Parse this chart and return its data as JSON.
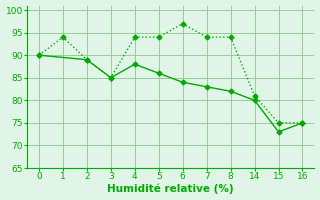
{
  "line1_x_idx": [
    0,
    1,
    2,
    3,
    4,
    5,
    6,
    7,
    8,
    9,
    10,
    11
  ],
  "line1_y": [
    90,
    94,
    89,
    85,
    94,
    94,
    97,
    94,
    94,
    81,
    75,
    75
  ],
  "line2_x_idx": [
    0,
    2,
    3,
    4,
    5,
    6,
    7,
    8,
    9,
    10,
    11
  ],
  "line2_y": [
    90,
    89,
    85,
    88,
    86,
    84,
    83,
    82,
    80,
    73,
    75
  ],
  "xtick_positions": [
    0,
    1,
    2,
    3,
    4,
    5,
    6,
    7,
    8,
    9,
    10,
    11
  ],
  "xtick_labels": [
    "0",
    "1",
    "2",
    "3",
    "4",
    "5",
    "6",
    "7",
    "8",
    "14",
    "15",
    "16"
  ],
  "line_color": "#00aa00",
  "bg_color": "#e0f5e8",
  "grid_color": "#99cc99",
  "xlabel": "Humidité relative (%)",
  "tick_color": "#00aa00",
  "ylim": [
    65,
    101
  ],
  "yticks": [
    65,
    70,
    75,
    80,
    85,
    90,
    95,
    100
  ],
  "xlim": [
    -0.5,
    11.5
  ]
}
